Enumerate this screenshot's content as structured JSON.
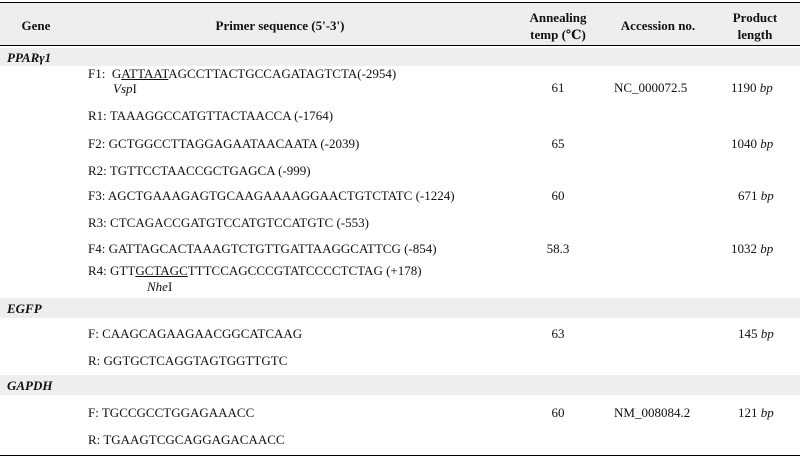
{
  "headers": {
    "gene": "Gene",
    "primer": "Primer sequence (5'-3')",
    "annealing": [
      "Annealing",
      "temp (℃)"
    ],
    "accession": "Accession no.",
    "product": [
      "Product",
      "length"
    ]
  },
  "genes": [
    {
      "name": "PPARγ1",
      "rows": [
        {
          "label": "F1:",
          "pre": "G",
          "site": "ATTAAT",
          "post": "AGCCTTACTGCCAGATAGTCTA(-2954)",
          "enzyme_italic": "Vsp",
          "enzyme_suffix": "I",
          "temp": "61",
          "accession": "NC_000072.5",
          "length_num": "1190",
          "length_unit": "bp"
        },
        {
          "label": "R1:",
          "seq": "TAAAGGCCATGTTACTAACCA (-1764)"
        },
        {
          "label": "F2:",
          "seq": "GCTGGCCTTAGGAGAATAACAATA (-2039)",
          "temp": "65",
          "length_num": "1040",
          "length_unit": "bp"
        },
        {
          "label": "R2:",
          "seq": "TGTTCCTAACCGCTGAGCA (-999)"
        },
        {
          "label": "F3:",
          "seq": "AGCTGAAAGAGTGCAAGAAAAGGAACTGTCTATC (-1224)",
          "temp": "60",
          "length_num": "671",
          "length_unit": "bp"
        },
        {
          "label": "R3:",
          "seq": "CTCAGACCGATGTCCATGTCCATGTC (-553)"
        },
        {
          "label": "F4:",
          "seq": "GATTAGCACTAAAGTCTGTTGATTAAGGCATTCG (-854)",
          "temp": "58.3",
          "length_num": "1032",
          "length_unit": "bp"
        },
        {
          "label": "R4:",
          "pre": "GTT",
          "site": "GCTAGC",
          "post": "TTTCCAGCCCGTATCCCCTCTAG (+178)",
          "enzyme_italic": "Nhe",
          "enzyme_suffix": "I"
        }
      ]
    },
    {
      "name": "EGFP",
      "rows": [
        {
          "label": "F:",
          "seq": "CAAGCAGAAGAACGGCATCAAG",
          "temp": "63",
          "length_num": "145",
          "length_unit": "bp"
        },
        {
          "label": "R:",
          "seq": "GGTGCTCAGGTAGTGGTTGTC"
        }
      ]
    },
    {
      "name": "GAPDH",
      "rows": [
        {
          "label": "F:",
          "seq": "TGCCGCCTGGAGAAACC",
          "temp": "60",
          "accession": "NM_008084.2",
          "length_num": "121",
          "length_unit": "bp"
        },
        {
          "label": "R:",
          "seq": "TGAAGTCGCAGGAGACAACC"
        }
      ]
    }
  ]
}
